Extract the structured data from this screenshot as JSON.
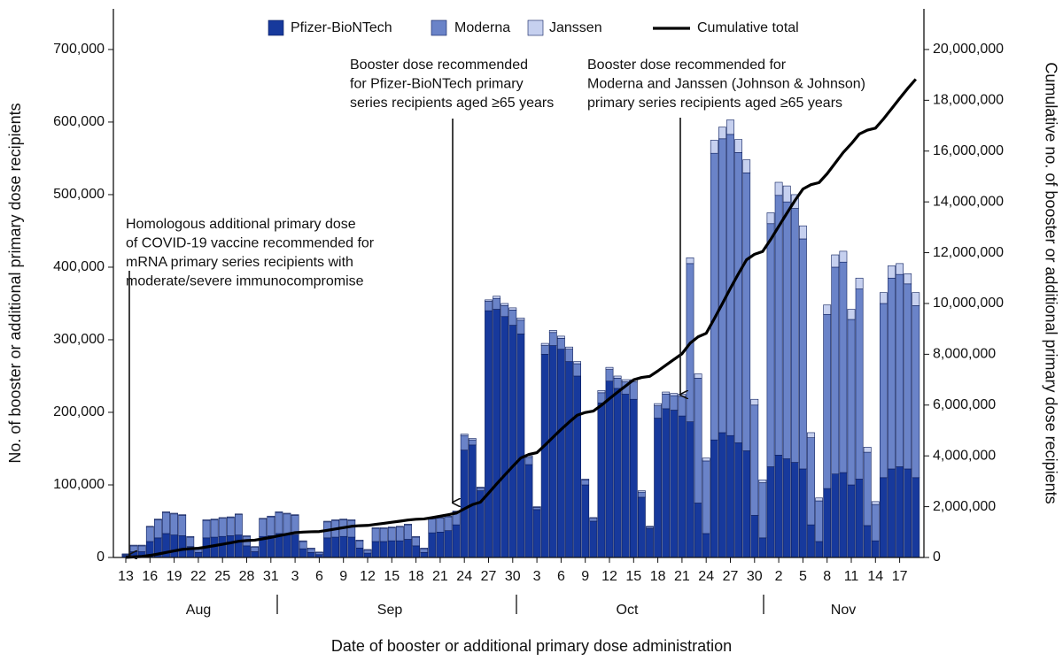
{
  "chart_data": {
    "type": "bar",
    "y_axis_label": "No. of booster or additional primary dose recipients",
    "y2_axis_label": "Cumulative no. of booster or additional primary dose recipients",
    "x_axis_label": "Date of booster or additional primary dose administration",
    "months": [
      "Aug",
      "Sep",
      "Oct",
      "Nov"
    ],
    "categories": [
      "13",
      null,
      null,
      "16",
      null,
      null,
      "19",
      null,
      null,
      "22",
      null,
      null,
      "25",
      null,
      null,
      "28",
      null,
      null,
      "31",
      null,
      null,
      "3",
      null,
      null,
      "6",
      null,
      null,
      "9",
      null,
      null,
      "12",
      null,
      null,
      "15",
      null,
      null,
      "18",
      null,
      null,
      "21",
      null,
      null,
      "24",
      null,
      null,
      "27",
      null,
      null,
      "30",
      null,
      null,
      "3",
      null,
      null,
      "6",
      null,
      null,
      "9",
      null,
      null,
      "12",
      null,
      null,
      "15",
      null,
      null,
      "18",
      null,
      null,
      "21",
      null,
      null,
      "24",
      null,
      null,
      "27",
      null,
      null,
      "30",
      null,
      null,
      "2",
      null,
      null,
      "5",
      null,
      null,
      "8",
      null,
      null,
      "11",
      null,
      null,
      "14",
      null,
      null,
      "17",
      null,
      null
    ],
    "series": [
      {
        "name": "Pfizer-BioNTech",
        "color": "#17399c",
        "values": [
          3000,
          8000,
          8000,
          22000,
          27000,
          33000,
          31000,
          30000,
          15000,
          7000,
          27000,
          28000,
          29000,
          30000,
          31000,
          16000,
          8000,
          29000,
          30000,
          33000,
          32000,
          31000,
          12000,
          7000,
          4000,
          27000,
          28000,
          29000,
          28000,
          13000,
          6000,
          22000,
          22000,
          23000,
          23000,
          25000,
          16000,
          7000,
          34000,
          35000,
          37000,
          45000,
          148000,
          155000,
          92000,
          340000,
          342000,
          332000,
          320000,
          308000,
          128000,
          66000,
          280000,
          292000,
          287000,
          270000,
          250000,
          100000,
          50000,
          213000,
          243000,
          233000,
          225000,
          218000,
          83000,
          40000,
          192000,
          205000,
          203000,
          195000,
          187000,
          75000,
          33000,
          162000,
          172000,
          168000,
          158000,
          147000,
          58000,
          27000,
          125000,
          141000,
          136000,
          131000,
          122000,
          45000,
          22000,
          95000,
          115000,
          117000,
          100000,
          108000,
          44000,
          23000,
          110000,
          122000,
          125000,
          122000,
          110000
        ]
      },
      {
        "name": "Moderna",
        "color": "#6a83c8",
        "values": [
          1500,
          8000,
          8000,
          20000,
          25000,
          29000,
          29000,
          28000,
          13000,
          6000,
          24000,
          24000,
          25000,
          25000,
          28000,
          13000,
          6000,
          24000,
          26000,
          29000,
          28000,
          27000,
          10000,
          5000,
          3000,
          22000,
          23000,
          23000,
          23000,
          10000,
          4000,
          18000,
          18000,
          18000,
          19000,
          20000,
          12000,
          5000,
          19000,
          19000,
          19000,
          18000,
          20000,
          7000,
          4000,
          13000,
          15000,
          15000,
          21000,
          19000,
          10000,
          3000,
          12000,
          18000,
          15000,
          17000,
          17000,
          7000,
          4000,
          14000,
          16000,
          14000,
          17000,
          24000,
          7000,
          2000,
          17000,
          20000,
          20000,
          27000,
          218000,
          172000,
          100000,
          395000,
          405000,
          415000,
          400000,
          383000,
          152000,
          76000,
          335000,
          358000,
          354000,
          350000,
          317000,
          120000,
          56000,
          240000,
          285000,
          290000,
          228000,
          262000,
          101000,
          50000,
          240000,
          263000,
          265000,
          255000,
          237000
        ]
      },
      {
        "name": "Janssen",
        "color": "#c6d0ef",
        "values": [
          500,
          1000,
          1000,
          1000,
          1000,
          1000,
          1000,
          1000,
          1000,
          500,
          1000,
          1000,
          1000,
          1000,
          1000,
          1000,
          1000,
          1000,
          1000,
          1000,
          1000,
          1000,
          1000,
          1000,
          500,
          1000,
          1000,
          1000,
          1000,
          1000,
          1000,
          1000,
          1000,
          1000,
          1000,
          1000,
          1000,
          1000,
          1000,
          1000,
          1000,
          1000,
          2000,
          2000,
          1000,
          2000,
          3000,
          3000,
          3000,
          3000,
          2000,
          1000,
          3000,
          3000,
          3000,
          3000,
          3000,
          1000,
          1000,
          3000,
          3000,
          3000,
          3000,
          3000,
          2000,
          1000,
          3000,
          3000,
          3000,
          3000,
          8000,
          6000,
          4000,
          18000,
          16000,
          20000,
          18000,
          18000,
          8000,
          4000,
          15000,
          18000,
          22000,
          19000,
          18000,
          7000,
          4000,
          13000,
          17000,
          15000,
          14000,
          15000,
          7000,
          4000,
          15000,
          17000,
          15000,
          14000,
          18000
        ]
      },
      {
        "name": "Cumulative total",
        "color": "#000000",
        "type": "line",
        "axis": "y2",
        "values": [
          5000,
          22000,
          39000,
          82000,
          135000,
          198000,
          259000,
          318000,
          347000,
          361000,
          413000,
          466000,
          521000,
          577000,
          637000,
          667000,
          682000,
          736000,
          793000,
          856000,
          917000,
          976000,
          999000,
          1012000,
          1020000,
          1070000,
          1122000,
          1175000,
          1227000,
          1251000,
          1262000,
          1303000,
          1344000,
          1386000,
          1429000,
          1475000,
          1504000,
          1517000,
          1571000,
          1626000,
          1683000,
          1747000,
          1917000,
          2081000,
          2178000,
          2533000,
          2893000,
          3243000,
          3587000,
          3917000,
          4057000,
          4127000,
          4422000,
          4735000,
          5040000,
          5330000,
          5600000,
          5708000,
          5763000,
          5993000,
          6255000,
          6505000,
          6750000,
          6995000,
          7087000,
          7130000,
          7342000,
          7570000,
          7796000,
          8021000,
          8434000,
          8687000,
          8824000,
          9399000,
          9992000,
          10595000,
          11171000,
          11719000,
          11937000,
          12044000,
          12519000,
          13036000,
          13548000,
          14048000,
          14505000,
          14677000,
          14759000,
          15107000,
          15524000,
          15946000,
          16288000,
          16673000,
          16825000,
          16902000,
          17267000,
          17669000,
          18074000,
          18465000,
          18830000
        ]
      }
    ],
    "ylim": [
      0,
      756000
    ],
    "yticks": [
      0,
      {
        "value": 100000,
        "label": "100,000"
      },
      {
        "value": 200000,
        "label": "200,000"
      },
      {
        "value": 300000,
        "label": "300,000"
      },
      {
        "value": 400000,
        "label": "400,000"
      },
      {
        "value": 500000,
        "label": "500,000"
      },
      {
        "value": 600000,
        "label": "600,000"
      },
      {
        "value": 700000,
        "label": "700,000"
      }
    ],
    "y2lim": [
      0,
      21600000
    ],
    "y2ticks": [
      0,
      {
        "value": 2000000,
        "label": "2,000,000"
      },
      {
        "value": 4000000,
        "label": "4,000,000"
      },
      {
        "value": 6000000,
        "label": "6,000,000"
      },
      {
        "value": 8000000,
        "label": "8,000,000"
      },
      {
        "value": 10000000,
        "label": "10,000,000"
      },
      {
        "value": 12000000,
        "label": "12,000,000"
      },
      {
        "value": 14000000,
        "label": "14,000,000"
      },
      {
        "value": 16000000,
        "label": "16,000,000"
      },
      {
        "value": 18000000,
        "label": "18,000,000"
      },
      {
        "value": 20000000,
        "label": "20,000,000"
      }
    ],
    "legend": "top",
    "annotations": [
      [
        "Homologous additional primary dose",
        "of COVID-19 vaccine recommended for",
        "mRNA primary series recipients with",
        "moderate/severe immunocompromise"
      ],
      [
        "Booster dose recommended",
        "for Pfizer-BioNTech primary",
        "series recipients aged ≥65 years"
      ],
      [
        "Booster dose recommended for",
        "Moderna and Janssen (Johnson & Johnson)",
        "primary series recipients aged ≥65 years"
      ]
    ]
  }
}
